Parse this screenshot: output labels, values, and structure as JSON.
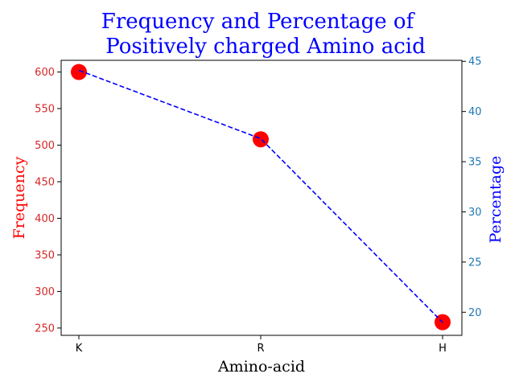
{
  "chart_data": {
    "type": "line",
    "title_lines": [
      "Frequency and Percentage of",
      "Positively charged Amino acid"
    ],
    "xlabel": "Amino-acid",
    "ylabel_left": "Frequency",
    "ylabel_right": "Percentage",
    "categories": [
      "K",
      "R",
      "H"
    ],
    "series": [
      {
        "axis": "left",
        "style": "markers",
        "color": "#ff0000",
        "values": [
          600,
          508,
          258
        ]
      },
      {
        "axis": "right",
        "style": "dashed-line",
        "color": "#0000ff",
        "values": [
          44.1,
          37.3,
          19.0
        ]
      }
    ],
    "left_axis": {
      "ylim": [
        240,
        616
      ],
      "ticks": [
        "250",
        "300",
        "350",
        "400",
        "450",
        "500",
        "550",
        "600"
      ],
      "tick_color": "#d62728",
      "label_color": "#ff0000"
    },
    "right_axis": {
      "ylim": [
        17.7,
        45.1
      ],
      "ticks": [
        "20",
        "25",
        "30",
        "35",
        "40",
        "45"
      ],
      "tick_color": "#1f77b4",
      "label_color": "#0000ff"
    },
    "title_color": "#0000ff",
    "grid": false
  }
}
